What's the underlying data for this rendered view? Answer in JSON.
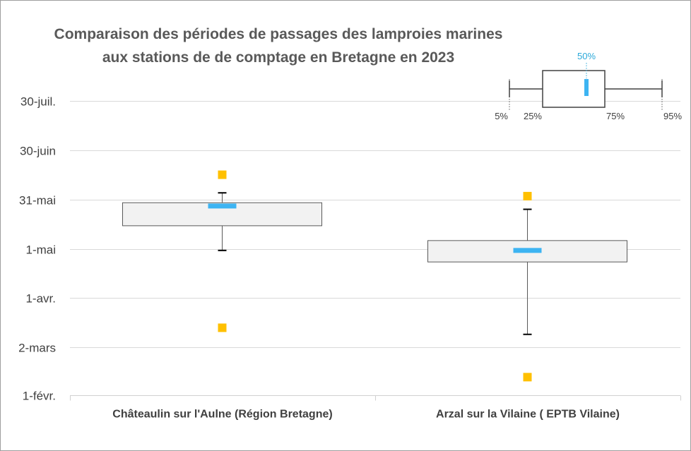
{
  "chart_data": {
    "type": "boxplot",
    "title_lines": [
      "Comparaison des périodes de passages des lamproies marines",
      "aux stations de de comptage en Bretagne en 2023"
    ],
    "y_axis": {
      "type": "date",
      "range": [
        "2023-02-01",
        "2023-08-01"
      ],
      "ticks": [
        {
          "value": "2023-02-01",
          "label": "1-févr."
        },
        {
          "value": "2023-03-02",
          "label": "2-mars"
        },
        {
          "value": "2023-04-01",
          "label": "1-avr."
        },
        {
          "value": "2023-05-01",
          "label": "1-mai"
        },
        {
          "value": "2023-05-31",
          "label": "31-mai"
        },
        {
          "value": "2023-06-30",
          "label": "30-juin"
        },
        {
          "value": "2023-07-30",
          "label": "30-juil."
        }
      ]
    },
    "grid": true,
    "categories": [
      "Châteaulin sur l'Aulne (Région Bretagne)",
      "Arzal sur la Vilaine ( EPTB Vilaine)"
    ],
    "series": [
      {
        "p5": "2023-04-30",
        "p25": "2023-05-15",
        "median": "2023-05-27",
        "p75": "2023-05-29",
        "p95": "2023-06-04",
        "min": "2023-03-14",
        "max": "2023-06-15"
      },
      {
        "p5": "2023-03-10",
        "p25": "2023-04-23",
        "median": "2023-04-30",
        "p75": "2023-05-06",
        "p95": "2023-05-25",
        "min": "2023-02-12",
        "max": "2023-06-02"
      }
    ],
    "colors": {
      "box_fill": "#f2f2f2",
      "box_stroke": "#595959",
      "whisker": "#595959",
      "whisker_cap": "#000000",
      "median": "#3db4f2",
      "outlier": "#ffc000",
      "grid": "#d9d9d9",
      "legend_median_label": "#2aa8d9"
    },
    "legend": {
      "position": "top-right",
      "labels": {
        "p5": "5%",
        "p25": "25%",
        "median": "50%",
        "p75": "75%",
        "p95": "95%"
      }
    }
  }
}
